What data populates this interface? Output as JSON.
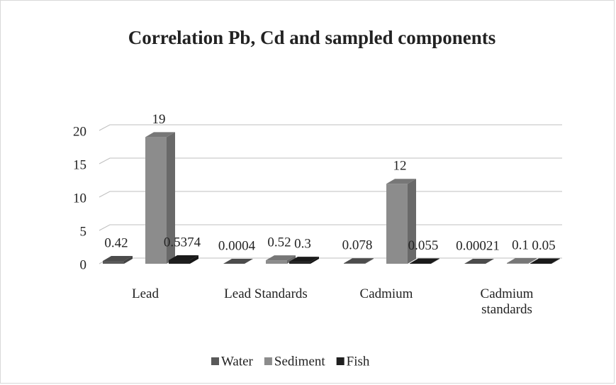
{
  "chart_data": {
    "type": "bar3d",
    "title": "Correlation Pb, Cd and sampled components",
    "categories": [
      "Lead",
      "Lead Standards",
      "Cadmium",
      "Cadmium standards"
    ],
    "series": [
      {
        "name": "Water",
        "color": "#595959",
        "values": [
          0.42,
          0.0004,
          0.078,
          0.00021
        ]
      },
      {
        "name": "Sediment",
        "color": "#8c8c8c",
        "values": [
          19,
          0.52,
          12,
          0.1
        ]
      },
      {
        "name": "Fish",
        "color": "#1f1f1f",
        "values": [
          0.5374,
          0.3,
          0.055,
          0.05
        ]
      }
    ],
    "ylim": [
      0,
      20
    ],
    "yticks": [
      0,
      5,
      10,
      15,
      20
    ],
    "grid": true,
    "legend": "bottom"
  }
}
